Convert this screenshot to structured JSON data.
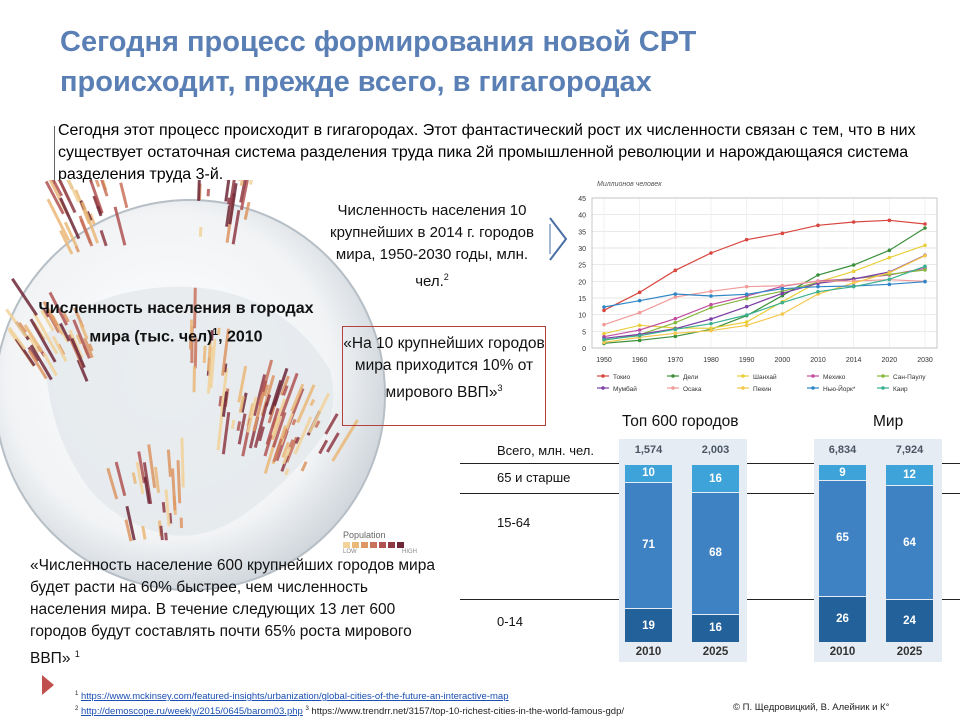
{
  "title_line1": "Сегодня процесс формирования новой СРТ",
  "title_line2": "происходит, прежде всего, в гигагородах",
  "intro": "Сегодня этот процесс происходит в гигагородах. Этот фантастический рост их численности связан с тем, что в них существует остаточная система разделения труда пика 2й промышленной революции и нарождающаяся система разделения труда 3-й.",
  "globe": {
    "label": "Численность населения в городах мира (тыс. чел)",
    "label_sup": "1",
    "label_year": ", 2010",
    "legend_title": "Population",
    "legend_low": "LOW",
    "legend_high": "HIGH",
    "legend_colors": [
      "#f2d39a",
      "#eab879",
      "#dd9664",
      "#c9735a",
      "#b05352",
      "#8f3a45",
      "#6e2838"
    ]
  },
  "pop_caption": {
    "text": "Численность населения 10 крупнейших в 2014 г. городов мира, 1950-2030 годы, млн. чел.",
    "sup": "2"
  },
  "quote_mid": {
    "text": "«На 10 крупнейших городов мира приходится 10% от мирового ВВП»",
    "sup": "3"
  },
  "quote_bottom": {
    "text": "«Численность население 600 крупнейших городов мира будет расти на 60% быстрее, чем численность населения мира. В течение следующих 13 лет 600 городов будут составлять почти 65% роста мирового ВВП»",
    "sup": "1"
  },
  "chart_data": [
    {
      "type": "line",
      "title": "Миллионов человек",
      "x": [
        "1950",
        "1960",
        "1970",
        "1980",
        "1990",
        "2000",
        "2010",
        "2014",
        "2020",
        "2030"
      ],
      "ylim": [
        0,
        45
      ],
      "yticks": [
        0,
        5,
        10,
        15,
        20,
        25,
        30,
        35,
        40,
        45
      ],
      "grid": true,
      "legend_position": "bottom",
      "series": [
        {
          "name": "Токио",
          "color": "#d9453f",
          "values": [
            11.3,
            16.7,
            23.3,
            28.5,
            32.5,
            34.4,
            36.8,
            37.8,
            38.3,
            37.2
          ]
        },
        {
          "name": "Дели",
          "color": "#3a8f3a",
          "values": [
            1.4,
            2.3,
            3.5,
            5.6,
            9.7,
            15.7,
            21.9,
            24.9,
            29.3,
            36.0
          ]
        },
        {
          "name": "Шанхай",
          "color": "#e8cf3a",
          "values": [
            4.3,
            6.8,
            6.0,
            5.9,
            7.8,
            13.9,
            19.8,
            23.0,
            27.1,
            30.8
          ]
        },
        {
          "name": "Мехико",
          "color": "#c14fa0",
          "values": [
            3.4,
            5.4,
            8.8,
            13.0,
            15.6,
            18.5,
            20.1,
            20.8,
            21.9,
            23.9
          ]
        },
        {
          "name": "Сан-Паулу",
          "color": "#87b840",
          "values": [
            2.3,
            4.0,
            7.6,
            12.1,
            14.8,
            17.0,
            19.7,
            20.8,
            22.1,
            23.4
          ]
        },
        {
          "name": "Мумбай",
          "color": "#7c3fa6",
          "values": [
            2.9,
            4.1,
            5.8,
            8.7,
            12.4,
            16.4,
            19.4,
            20.7,
            22.8,
            27.8
          ]
        },
        {
          "name": "Осака",
          "color": "#f19a9a",
          "values": [
            7.0,
            10.6,
            15.3,
            17.0,
            18.4,
            18.7,
            20.0,
            20.1,
            20.5,
            20.0
          ]
        },
        {
          "name": "Пекин",
          "color": "#f3c74b",
          "values": [
            1.7,
            3.2,
            4.4,
            5.2,
            6.8,
            10.2,
            16.2,
            19.5,
            22.6,
            27.7
          ]
        },
        {
          "name": "Нью-Йорк*",
          "color": "#2f86c7",
          "values": [
            12.3,
            14.2,
            16.2,
            15.6,
            16.1,
            17.8,
            18.4,
            18.6,
            19.1,
            19.9
          ]
        },
        {
          "name": "Каир",
          "color": "#3ab08f",
          "values": [
            2.5,
            3.7,
            5.6,
            7.3,
            9.9,
            13.6,
            16.9,
            18.4,
            20.6,
            24.5
          ]
        }
      ]
    },
    {
      "type": "bar",
      "title": "Топ 600 городов",
      "categories": [
        "2010",
        "2025"
      ],
      "totals_label": "Всего, млн. чел.",
      "totals": [
        "1,574",
        "2,003"
      ],
      "series": [
        {
          "name": "65 и старше",
          "values": [
            10,
            16
          ]
        },
        {
          "name": "15-64",
          "values": [
            71,
            68
          ]
        },
        {
          "name": "0-14",
          "values": [
            19,
            16
          ]
        }
      ]
    },
    {
      "type": "bar",
      "title": "Мир",
      "categories": [
        "2010",
        "2025"
      ],
      "totals": [
        "6,834",
        "7,924"
      ],
      "series": [
        {
          "name": "65 и старше",
          "values": [
            9,
            12
          ]
        },
        {
          "name": "15-64",
          "values": [
            65,
            64
          ]
        },
        {
          "name": "0-14",
          "values": [
            26,
            24
          ]
        }
      ]
    }
  ],
  "footnotes": {
    "n1": "1",
    "link1": "https://www.mckinsey.com/featured-insights/urbanization/global-cities-of-the-future-an-interactive-map",
    "n2": "2",
    "link2": "http://demoscope.ru/weekly/2015/0645/barom03.php",
    "n3": "3",
    "text3": "https://www.trendrr.net/3157/top-10-richest-cities-in-the-world-famous-gdp/"
  },
  "copyright": "© П. Щедровицкий, В. Алейник и К°"
}
